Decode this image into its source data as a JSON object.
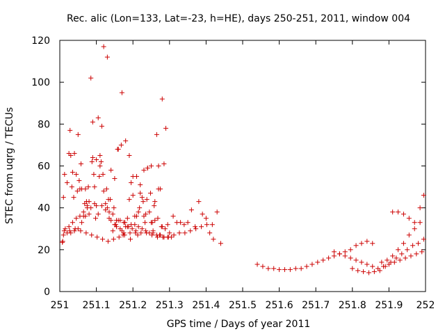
{
  "chart_data": {
    "type": "scatter",
    "title": "Rec. alic (Lon=133, Lat=-23, h=HE), days 250-251, 2011, window 004",
    "xlabel": "GPS time / Days of year 2011",
    "ylabel": "STEC from uqrg / TECUs",
    "xlim": [
      251,
      252
    ],
    "ylim": [
      0,
      120
    ],
    "xticks": [
      "251",
      "251.1",
      "251.2",
      "251.3",
      "251.4",
      "251.5",
      "251.6",
      "251.7",
      "251.8",
      "251.9",
      "252"
    ],
    "yticks": [
      "0",
      "20",
      "40",
      "60",
      "80",
      "100",
      "120"
    ],
    "grid": false,
    "marker": "plus",
    "color": "#cc0000",
    "series": [
      {
        "name": "STEC",
        "x": [
          251.007,
          251.01,
          251.013,
          251.02,
          251.025,
          251.03,
          251.035,
          251.04,
          251.045,
          251.05,
          251.055,
          251.06,
          251.065,
          251.07,
          251.075,
          251.08,
          251.085,
          251.09,
          251.095,
          251.1,
          251.105,
          251.11,
          251.115,
          251.12,
          251.125,
          251.13,
          251.135,
          251.14,
          251.145,
          251.15,
          251.155,
          251.16,
          251.165,
          251.17,
          251.175,
          251.18,
          251.185,
          251.19,
          251.195,
          251.2,
          251.205,
          251.21,
          251.215,
          251.22,
          251.225,
          251.23,
          251.235,
          251.24,
          251.245,
          251.25,
          251.255,
          251.26,
          251.265,
          251.27,
          251.275,
          251.28,
          251.285,
          251.29,
          251.295,
          251.3,
          251.31,
          251.32,
          251.33,
          251.34,
          251.35,
          251.36,
          251.37,
          251.38,
          251.39,
          251.4,
          251.41,
          251.42,
          251.43,
          251.44,
          251.008,
          251.015,
          251.025,
          251.035,
          251.045,
          251.055,
          251.065,
          251.075,
          251.085,
          251.095,
          251.105,
          251.115,
          251.125,
          251.135,
          251.145,
          251.155,
          251.165,
          251.175,
          251.185,
          251.195,
          251.205,
          251.215,
          251.225,
          251.235,
          251.245,
          251.255,
          251.265,
          251.275,
          251.285,
          251.295,
          251.305,
          251.01,
          251.02,
          251.03,
          251.04,
          251.05,
          251.06,
          251.07,
          251.08,
          251.09,
          251.1,
          251.11,
          251.12,
          251.13,
          251.14,
          251.15,
          251.16,
          251.17,
          251.18,
          251.19,
          251.2,
          251.21,
          251.22,
          251.23,
          251.24,
          251.25,
          251.26,
          251.27,
          251.28,
          251.012,
          251.027,
          251.042,
          251.057,
          251.072,
          251.087,
          251.102,
          251.117,
          251.132,
          251.147,
          251.162,
          251.177,
          251.192,
          251.207,
          251.222,
          251.237,
          251.252,
          251.267,
          251.282,
          251.297,
          251.312,
          251.327,
          251.342,
          251.357,
          251.372,
          251.387,
          251.402,
          251.417,
          251.028,
          251.038,
          251.048,
          251.058,
          251.068,
          251.078,
          251.088,
          251.098,
          251.108,
          251.118,
          251.128,
          251.138,
          251.148,
          251.158,
          251.168,
          251.178,
          251.188,
          251.198,
          251.208,
          251.218,
          251.228,
          251.238,
          251.248,
          251.258,
          251.268,
          251.278,
          251.288,
          251.033,
          251.053,
          251.073,
          251.093,
          251.113,
          251.133,
          251.153,
          251.173,
          251.193,
          251.213,
          251.233,
          251.253,
          251.273,
          251.54,
          251.555,
          251.57,
          251.585,
          251.6,
          251.615,
          251.63,
          251.645,
          251.66,
          251.675,
          251.69,
          251.705,
          251.72,
          251.735,
          251.75,
          251.765,
          251.78,
          251.795,
          251.81,
          251.825,
          251.84,
          251.855,
          251.75,
          251.765,
          251.78,
          251.795,
          251.81,
          251.825,
          251.84,
          251.855,
          251.87,
          251.885,
          251.9,
          251.915,
          251.93,
          251.945,
          251.96,
          251.975,
          251.99,
          251.8,
          251.815,
          251.83,
          251.845,
          251.86,
          251.875,
          251.89,
          251.905,
          251.92,
          251.935,
          251.95,
          251.965,
          251.98,
          251.995,
          251.88,
          251.895,
          251.91,
          251.925,
          251.94,
          251.955,
          251.97,
          251.985,
          251.91,
          251.925,
          251.94,
          251.955,
          251.97,
          251.985,
          251.995
        ],
        "y": [
          23.5,
          45,
          56,
          52,
          66,
          65,
          57,
          66,
          56,
          75,
          49,
          49,
          36,
          49,
          41,
          37,
          102,
          81,
          50,
          41,
          83,
          60,
          79,
          48,
          42,
          40,
          38,
          34,
          29,
          32,
          31,
          34,
          30,
          29,
          28,
          31,
          35,
          44,
          52,
          55,
          36,
          36,
          38,
          51,
          45,
          58,
          37,
          59,
          38,
          33,
          29,
          34,
          75,
          60,
          49,
          92,
          61,
          78,
          32,
          28,
          36,
          33,
          33,
          32,
          33,
          39,
          31,
          43,
          37,
          35,
          28,
          25,
          38,
          23,
          24,
          30,
          31,
          33,
          35,
          36,
          38,
          40,
          40,
          42,
          37,
          41,
          39,
          35,
          37,
          34,
          34,
          33,
          31,
          32,
          32,
          31,
          30,
          29,
          28,
          28,
          27,
          27,
          26,
          26,
          26,
          27,
          28,
          28,
          29,
          30,
          33,
          36,
          43,
          64,
          63,
          65,
          117,
          112,
          58,
          54,
          68,
          95,
          72,
          65,
          46,
          55,
          47,
          36,
          59,
          60,
          43,
          49,
          31,
          29,
          29,
          30,
          29,
          28,
          27,
          26,
          25,
          24,
          25,
          26,
          27,
          28,
          28,
          28,
          28,
          27,
          26,
          26,
          26,
          27,
          28,
          28,
          29,
          30,
          31,
          32,
          32,
          77,
          45,
          48,
          61,
          42,
          50,
          62,
          35,
          55,
          56,
          49,
          44,
          40,
          68,
          70,
          33,
          31,
          30,
          29,
          40,
          43,
          44,
          47,
          41,
          35,
          31,
          30,
          50,
          53,
          43,
          56,
          62,
          44,
          32,
          27,
          25,
          27,
          33,
          33,
          27,
          13,
          12,
          11,
          11,
          10.5,
          10.5,
          10.5,
          11,
          11,
          12,
          13,
          14,
          15,
          16,
          17,
          18,
          19,
          20,
          22,
          23,
          24,
          23,
          19,
          18,
          17,
          16,
          15,
          14,
          13,
          12,
          11,
          12,
          13,
          14,
          15,
          16,
          17,
          18,
          19,
          11,
          10,
          9.5,
          9,
          9.5,
          10,
          12,
          14,
          16,
          18,
          20,
          22,
          23,
          25,
          14,
          15,
          17,
          20,
          23,
          27,
          30,
          33,
          38,
          38,
          37,
          35,
          33,
          40,
          46
        ]
      }
    ]
  }
}
